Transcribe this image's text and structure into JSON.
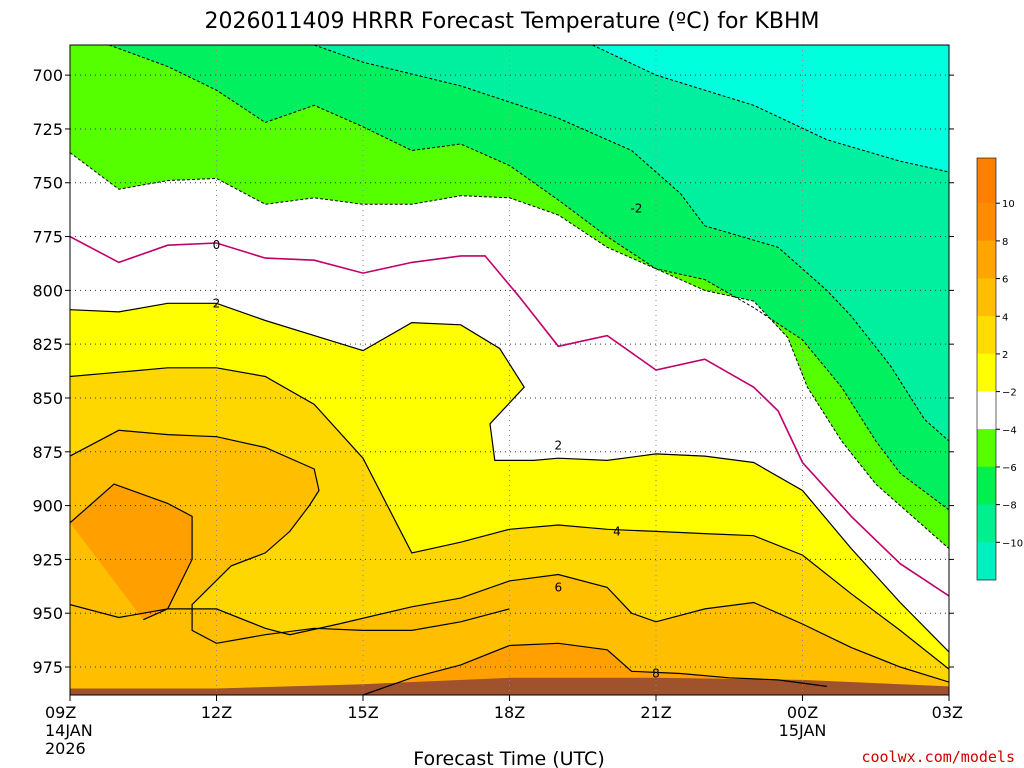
{
  "chart_data": {
    "type": "heatmap",
    "title": "2026011409 HRRR Forecast Temperature (ºC) for KBHM",
    "xlabel": "Forecast Time (UTC)",
    "ylabel": "",
    "credit": "coolwx.com/models",
    "x_ticks": [
      {
        "hour": 0,
        "label": "09Z",
        "sub1": "14JAN",
        "sub2": "2026"
      },
      {
        "hour": 3,
        "label": "12Z"
      },
      {
        "hour": 6,
        "label": "15Z"
      },
      {
        "hour": 9,
        "label": "18Z"
      },
      {
        "hour": 12,
        "label": "21Z"
      },
      {
        "hour": 15,
        "label": "00Z",
        "sub1": "15JAN"
      },
      {
        "hour": 18,
        "label": "03Z"
      }
    ],
    "xlim": [
      0,
      18
    ],
    "pressure_ticks": [
      700,
      725,
      750,
      775,
      800,
      825,
      850,
      875,
      900,
      925,
      950,
      975
    ],
    "ylim": [
      686,
      988
    ],
    "grid": true,
    "colorbar": {
      "placement": "right",
      "levels": [
        {
          "label": "10",
          "color": "#ff8c00"
        },
        {
          "label": "8",
          "color": "#ffa500"
        },
        {
          "label": "6",
          "color": "#ffbf00"
        },
        {
          "label": "4",
          "color": "#ffdd00"
        },
        {
          "label": "2",
          "color": "#ffff00"
        },
        {
          "label": "−2",
          "color": "#ffffff"
        },
        {
          "label": "−4",
          "color": "#55ff00"
        },
        {
          "label": "−6",
          "color": "#00f050"
        },
        {
          "label": "−8",
          "color": "#00f090"
        },
        {
          "label": "−10",
          "color": "#00f0c0"
        }
      ],
      "top_color": "#ff8000",
      "bottom_color": "#00ffe0"
    },
    "contour_labels": [
      {
        "text": "-2",
        "x": 11.6,
        "p": 762
      },
      {
        "text": "0",
        "x": 3.0,
        "p": 779
      },
      {
        "text": "2",
        "x": 3.0,
        "p": 806
      },
      {
        "text": "2",
        "x": 10.0,
        "p": 872
      },
      {
        "text": "4",
        "x": 11.2,
        "p": 912
      },
      {
        "text": "6",
        "x": 10.0,
        "p": 938
      },
      {
        "text": "8",
        "x": 12.0,
        "p": 978
      }
    ],
    "isotherms": [
      {
        "temp": -8,
        "pts": [
          [
            10.7,
            686
          ],
          [
            12.0,
            700
          ],
          [
            14.0,
            714
          ],
          [
            15.5,
            730
          ],
          [
            17.0,
            740
          ],
          [
            18.0,
            745
          ]
        ]
      },
      {
        "temp": -6,
        "pts": [
          [
            5.0,
            686
          ],
          [
            6.0,
            694
          ],
          [
            8.0,
            705
          ],
          [
            10.0,
            720
          ],
          [
            11.5,
            735
          ],
          [
            12.5,
            755
          ],
          [
            13.0,
            770
          ],
          [
            14.5,
            780
          ],
          [
            15.5,
            800
          ],
          [
            16.0,
            812
          ],
          [
            16.8,
            835
          ],
          [
            17.5,
            860
          ],
          [
            18.0,
            870
          ]
        ]
      },
      {
        "temp": -4,
        "pts": [
          [
            0.8,
            686
          ],
          [
            2.0,
            696
          ],
          [
            3.0,
            707
          ],
          [
            4.0,
            722
          ],
          [
            5.0,
            714
          ],
          [
            6.0,
            724
          ],
          [
            7.0,
            735
          ],
          [
            8.0,
            732
          ],
          [
            9.0,
            742
          ],
          [
            10.0,
            758
          ],
          [
            11.0,
            775
          ],
          [
            12.0,
            790
          ],
          [
            13.0,
            795
          ],
          [
            14.0,
            808
          ],
          [
            15.0,
            823
          ],
          [
            15.8,
            845
          ],
          [
            16.5,
            870
          ],
          [
            17.0,
            885
          ],
          [
            18.0,
            902
          ]
        ]
      },
      {
        "temp": -2,
        "pts": [
          [
            0,
            736
          ],
          [
            1.0,
            753
          ],
          [
            2.0,
            749
          ],
          [
            3.0,
            748
          ],
          [
            4.0,
            760
          ],
          [
            5.0,
            757
          ],
          [
            6.0,
            760
          ],
          [
            7.0,
            760
          ],
          [
            8.0,
            756
          ],
          [
            9.0,
            757
          ],
          [
            10.0,
            765
          ],
          [
            11.0,
            780
          ],
          [
            12.0,
            790
          ],
          [
            13.0,
            800
          ],
          [
            14.0,
            805
          ],
          [
            14.7,
            822
          ],
          [
            15.1,
            845
          ],
          [
            15.8,
            870
          ],
          [
            16.5,
            890
          ],
          [
            17.5,
            910
          ],
          [
            18.0,
            920
          ]
        ]
      },
      {
        "temp": 0,
        "pts": [
          [
            0,
            775
          ],
          [
            1.0,
            787
          ],
          [
            2.0,
            779
          ],
          [
            3.0,
            778
          ],
          [
            4.0,
            785
          ],
          [
            5.0,
            786
          ],
          [
            6.0,
            792
          ],
          [
            7.0,
            787
          ],
          [
            8.0,
            784
          ],
          [
            8.5,
            784
          ],
          [
            9.2,
            803
          ],
          [
            10.0,
            826
          ],
          [
            11.0,
            821
          ],
          [
            12.0,
            837
          ],
          [
            13.0,
            832
          ],
          [
            14.0,
            845
          ],
          [
            14.5,
            856
          ],
          [
            15.0,
            880
          ],
          [
            16.0,
            905
          ],
          [
            17.0,
            927
          ],
          [
            18.0,
            942
          ]
        ]
      },
      {
        "temp": 2,
        "pts": [
          [
            0,
            809
          ],
          [
            1.0,
            810
          ],
          [
            2.0,
            806
          ],
          [
            3.0,
            806
          ],
          [
            4.0,
            814
          ],
          [
            5.0,
            821
          ],
          [
            6.0,
            828
          ],
          [
            7.0,
            815
          ],
          [
            8.0,
            816
          ],
          [
            8.8,
            827
          ],
          [
            9.3,
            845
          ],
          [
            8.6,
            862
          ],
          [
            8.7,
            879
          ],
          [
            9.5,
            879
          ],
          [
            10.0,
            878
          ],
          [
            11.0,
            879
          ],
          [
            12.0,
            876
          ],
          [
            13.0,
            877
          ],
          [
            14.0,
            880
          ],
          [
            15.0,
            893
          ],
          [
            16.0,
            920
          ],
          [
            17.0,
            945
          ],
          [
            18.0,
            968
          ]
        ]
      },
      {
        "temp": 4,
        "pts": [
          [
            0,
            840
          ],
          [
            1.0,
            838
          ],
          [
            2.0,
            836
          ],
          [
            3.0,
            836
          ],
          [
            4.0,
            840
          ],
          [
            5.0,
            853
          ],
          [
            6.0,
            878
          ],
          [
            6.5,
            900
          ],
          [
            7.0,
            922
          ],
          [
            8.0,
            917
          ],
          [
            9.0,
            911
          ],
          [
            10.0,
            909
          ],
          [
            11.0,
            911
          ],
          [
            12.0,
            912
          ],
          [
            13.0,
            913
          ],
          [
            14.0,
            914
          ],
          [
            15.0,
            923
          ],
          [
            16.0,
            941
          ],
          [
            17.0,
            958
          ],
          [
            18.0,
            976
          ]
        ],
        "extra": [
          [
            0,
            877
          ],
          [
            1.0,
            865
          ],
          [
            2.0,
            867
          ],
          [
            3.0,
            868
          ],
          [
            4.0,
            873
          ],
          [
            5.0,
            883
          ],
          [
            5.1,
            893
          ],
          [
            4.9,
            900
          ],
          [
            4.5,
            912
          ],
          [
            4.0,
            922
          ],
          [
            3.3,
            928
          ],
          [
            2.5,
            946
          ],
          [
            2.5,
            958
          ],
          [
            3.0,
            964
          ],
          [
            3.5,
            962
          ],
          [
            4.0,
            960
          ],
          [
            5.0,
            957
          ],
          [
            6.0,
            958
          ],
          [
            7.0,
            958
          ],
          [
            8.0,
            954
          ],
          [
            9.0,
            948
          ]
        ]
      },
      {
        "temp": 6,
        "pts": [
          [
            0,
            946
          ],
          [
            1.0,
            952
          ],
          [
            2.0,
            948
          ],
          [
            3.0,
            948
          ],
          [
            4.0,
            957
          ],
          [
            4.5,
            960
          ],
          [
            5.5,
            955
          ],
          [
            7.0,
            947
          ],
          [
            8.0,
            943
          ],
          [
            9.0,
            935
          ],
          [
            10.0,
            932
          ],
          [
            11.0,
            938
          ],
          [
            11.5,
            950
          ],
          [
            12.0,
            954
          ],
          [
            13.0,
            948
          ],
          [
            14.0,
            945
          ],
          [
            15.0,
            955
          ],
          [
            16.0,
            966
          ],
          [
            17.0,
            975
          ],
          [
            18.0,
            982
          ]
        ],
        "extra": [
          [
            0,
            908
          ],
          [
            0.9,
            890
          ],
          [
            2.0,
            899
          ],
          [
            2.5,
            905
          ],
          [
            2.5,
            925
          ],
          [
            2.0,
            948
          ],
          [
            1.5,
            953
          ]
        ]
      },
      {
        "temp": 8,
        "pts": [
          [
            6.0,
            988
          ],
          [
            7.0,
            980
          ],
          [
            8.0,
            974
          ],
          [
            9.0,
            965
          ],
          [
            10.0,
            964
          ],
          [
            11.0,
            967
          ],
          [
            11.5,
            977
          ],
          [
            12.5,
            978
          ],
          [
            13.5,
            980
          ],
          [
            14.5,
            981
          ],
          [
            15.5,
            984
          ]
        ]
      }
    ]
  }
}
